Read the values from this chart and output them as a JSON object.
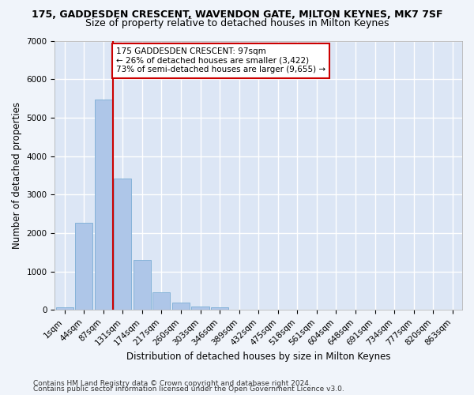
{
  "title": "175, GADDESDEN CRESCENT, WAVENDON GATE, MILTON KEYNES, MK7 7SF",
  "subtitle": "Size of property relative to detached houses in Milton Keynes",
  "xlabel": "Distribution of detached houses by size in Milton Keynes",
  "ylabel": "Number of detached properties",
  "footer1": "Contains HM Land Registry data © Crown copyright and database right 2024.",
  "footer2": "Contains public sector information licensed under the Open Government Licence v3.0.",
  "bar_labels": [
    "1sqm",
    "44sqm",
    "87sqm",
    "131sqm",
    "174sqm",
    "217sqm",
    "260sqm",
    "303sqm",
    "346sqm",
    "389sqm",
    "432sqm",
    "475sqm",
    "518sqm",
    "561sqm",
    "604sqm",
    "648sqm",
    "691sqm",
    "734sqm",
    "777sqm",
    "820sqm",
    "863sqm"
  ],
  "bar_values": [
    75,
    2270,
    5480,
    3420,
    1310,
    460,
    185,
    95,
    60,
    0,
    0,
    0,
    0,
    0,
    0,
    0,
    0,
    0,
    0,
    0,
    0
  ],
  "bar_color": "#aec6e8",
  "bar_edge_color": "#7aadd4",
  "vline_x": 2.5,
  "vline_color": "#cc0000",
  "annotation_text": "175 GADDESDEN CRESCENT: 97sqm\n← 26% of detached houses are smaller (3,422)\n73% of semi-detached houses are larger (9,655) →",
  "annotation_box_color": "#ffffff",
  "annotation_box_edge": "#cc0000",
  "ylim": [
    0,
    7000
  ],
  "yticks": [
    0,
    1000,
    2000,
    3000,
    4000,
    5000,
    6000,
    7000
  ],
  "fig_bg_color": "#f0f4fa",
  "plot_bg": "#dce6f5",
  "grid_color": "#ffffff",
  "title_fontsize": 9,
  "subtitle_fontsize": 9,
  "axis_label_fontsize": 8.5,
  "tick_fontsize": 7.5,
  "annotation_fontsize": 7.5,
  "footer_fontsize": 6.5
}
